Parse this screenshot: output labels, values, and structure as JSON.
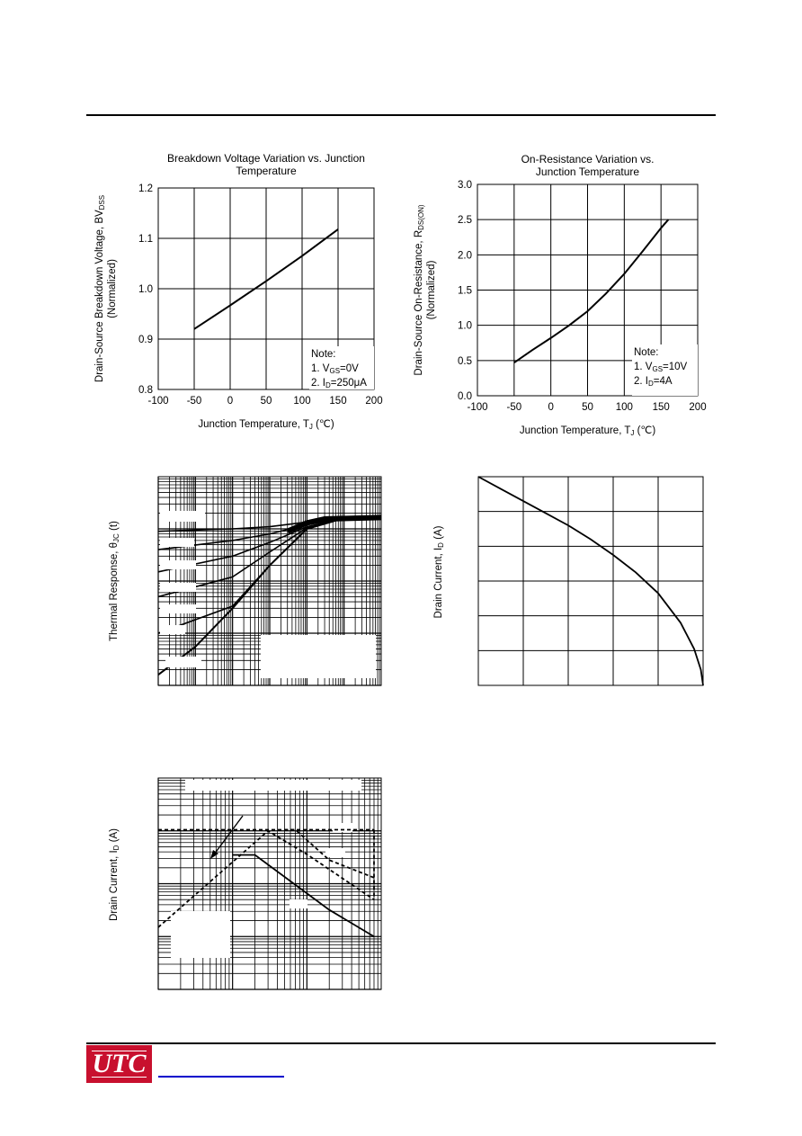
{
  "chart_data": [
    {
      "id": "c1",
      "type": "line",
      "title_lines": [
        "Breakdown Voltage Variation vs. Junction",
        "Temperature"
      ],
      "xlabel": "Junction Temperature, T",
      "xlabel_sub": "J",
      "xlabel_unit": " (℃)",
      "ylabel": "Drain-Source Breakdown Voltage, BV",
      "ylabel_sub": "DSS",
      "ylabel2": "(Normalized)",
      "xlim": [
        -100,
        200
      ],
      "ylim": [
        0.8,
        1.2
      ],
      "xticks": [
        -100,
        -50,
        0,
        50,
        100,
        150,
        200
      ],
      "xtick_labels": [
        "-100",
        "-50",
        "0",
        "50",
        "100",
        "150",
        "200"
      ],
      "yticks": [
        0.8,
        0.9,
        1.0,
        1.1,
        1.2
      ],
      "ytick_labels": [
        "0.8",
        "0.9",
        "1.0",
        "1.1",
        "1.2"
      ],
      "series": [
        {
          "x": [
            -50,
            0,
            50,
            100,
            150
          ],
          "y": [
            0.92,
            0.967,
            1.015,
            1.065,
            1.118
          ]
        }
      ],
      "note": {
        "title": "Note:",
        "lines": [
          {
            "pre": "1. V",
            "sub": "GS",
            "post": "=0V"
          },
          {
            "pre": "2. I",
            "sub": "D",
            "post": "=250μA"
          }
        ]
      }
    },
    {
      "id": "c2",
      "type": "line",
      "title_lines": [
        "On-Resistance Variation vs.",
        "Junction Temperature"
      ],
      "xlabel": "Junction Temperature, T",
      "xlabel_sub": "J",
      "xlabel_unit": " (℃)",
      "ylabel": "Drain-Source On-Resistance, R",
      "ylabel_sub": "DS(ON)",
      "ylabel2": "(Normalized)",
      "xlim": [
        -100,
        200
      ],
      "ylim": [
        0,
        3.0
      ],
      "xticks": [
        -100,
        -50,
        0,
        50,
        100,
        150,
        200
      ],
      "xtick_labels": [
        "-100",
        "-50",
        "0",
        "50",
        "100",
        "150",
        "200"
      ],
      "yticks": [
        0,
        0.5,
        1.0,
        1.5,
        2.0,
        2.5,
        3.0
      ],
      "ytick_labels": [
        "0.0",
        "0.5",
        "1.0",
        "1.5",
        "2.0",
        "2.5",
        "3.0"
      ],
      "series": [
        {
          "x": [
            -50,
            -25,
            0,
            25,
            50,
            75,
            100,
            125,
            150,
            160
          ],
          "y": [
            0.47,
            0.65,
            0.82,
            1.0,
            1.2,
            1.45,
            1.73,
            2.05,
            2.38,
            2.5
          ]
        }
      ],
      "note": {
        "title": "Note:",
        "lines": [
          {
            "pre": "1. V",
            "sub": "GS",
            "post": "=10V"
          },
          {
            "pre": "2. I",
            "sub": "D",
            "post": "=4A"
          }
        ]
      }
    },
    {
      "id": "c3",
      "type": "line",
      "ylabel": "Thermal Response, θ",
      "ylabel_sub": "JC",
      "ylabel_post": " (t)",
      "xlog": true,
      "ylog": true,
      "xlim": [
        1e-05,
        10
      ],
      "ylim": [
        0.001,
        10
      ],
      "series": [
        {
          "x": [
            1e-05,
            0.0001,
            0.001,
            0.01,
            0.1,
            1,
            10
          ],
          "y": [
            0.0016,
            0.0055,
            0.03,
            0.2,
            1.0,
            1.6,
            1.65
          ]
        },
        {
          "x": [
            1e-05,
            0.001,
            0.01,
            0.1,
            1,
            10
          ],
          "y": [
            0.01,
            0.033,
            0.2,
            1.0,
            1.6,
            1.65
          ]
        },
        {
          "x": [
            1e-05,
            0.001,
            0.01,
            0.1,
            1,
            10
          ],
          "y": [
            0.05,
            0.12,
            0.36,
            1.05,
            1.6,
            1.65
          ]
        },
        {
          "x": [
            1e-05,
            0.001,
            0.01,
            0.1,
            1,
            10
          ],
          "y": [
            0.15,
            0.3,
            0.55,
            1.1,
            1.6,
            1.65
          ]
        },
        {
          "x": [
            1e-05,
            0.001,
            0.01,
            0.1,
            1,
            10
          ],
          "y": [
            0.4,
            0.6,
            0.8,
            1.2,
            1.6,
            1.65
          ]
        },
        {
          "x": [
            1e-05,
            0.001,
            0.01,
            0.1,
            1,
            10
          ],
          "y": [
            0.9,
            1.0,
            1.1,
            1.35,
            1.6,
            1.65
          ]
        }
      ]
    },
    {
      "id": "c4",
      "type": "line",
      "ylabel": "Drain Current, I",
      "ylabel_sub": "D",
      "ylabel_post": " (A)",
      "xlim": [
        0,
        5
      ],
      "ylim": [
        0,
        6
      ],
      "series": [
        {
          "x": [
            0,
            0.5,
            1,
            1.5,
            2,
            2.5,
            3,
            3.5,
            4,
            4.5,
            4.8,
            4.95,
            5
          ],
          "y": [
            6.0,
            5.65,
            5.3,
            4.95,
            4.6,
            4.2,
            3.75,
            3.25,
            2.65,
            1.8,
            1.05,
            0.45,
            0
          ]
        }
      ]
    },
    {
      "id": "c5",
      "type": "line",
      "ylabel": "Drain Current, I",
      "ylabel_sub": "D",
      "ylabel_post": " (A)",
      "xlog": true,
      "ylog": true,
      "xlim": [
        1,
        1000
      ],
      "ylim": [
        0.01,
        100
      ],
      "series": [
        {
          "style": "solid",
          "x": [
            10,
            20,
            200,
            800
          ],
          "y": [
            3.5,
            3.5,
            0.32,
            0.1
          ]
        },
        {
          "style": "dashed",
          "x": [
            1,
            30,
            100,
            800
          ],
          "y": [
            0.15,
            10,
            3.6,
            0.5
          ]
        },
        {
          "style": "dashed",
          "x": [
            1,
            30,
            800
          ],
          "y": [
            10.5,
            10.5,
            10.5
          ]
        },
        {
          "style": "dashed",
          "x": [
            800,
            800
          ],
          "y": [
            10.5,
            0.5
          ]
        },
        {
          "style": "dashed",
          "x": [
            50,
            70,
            200,
            800
          ],
          "y": [
            10.5,
            10.5,
            2.8,
            1.3
          ]
        }
      ]
    }
  ]
}
